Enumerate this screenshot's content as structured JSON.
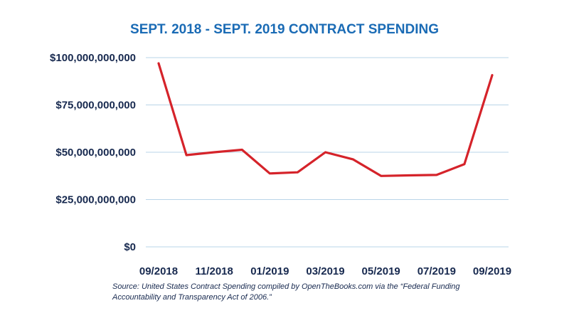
{
  "chart_data": {
    "type": "line",
    "title": "SEPT. 2018 - SEPT. 2019 CONTRACT SPENDING",
    "xlabel": "",
    "ylabel": "",
    "x": [
      "09/2018",
      "10/2018",
      "11/2018",
      "12/2018",
      "01/2019",
      "02/2019",
      "03/2019",
      "04/2019",
      "05/2019",
      "06/2019",
      "07/2019",
      "08/2019",
      "09/2019"
    ],
    "x_tick_labels": [
      "09/2018",
      "11/2018",
      "01/2019",
      "03/2019",
      "05/2019",
      "07/2019",
      "09/2019"
    ],
    "y_tick_labels": [
      "$100,000,000,000",
      "$75,000,000,000",
      "$50,000,000,000",
      "$25,000,000,000",
      "$0"
    ],
    "y_ticks": [
      100000000000,
      75000000000,
      50000000000,
      25000000000,
      0
    ],
    "ylim": [
      0,
      100000000000
    ],
    "grid": true,
    "legend": "none",
    "series": [
      {
        "values": [
          97000000000,
          48500000000,
          50000000000,
          51300000000,
          38800000000,
          39400000000,
          50000000000,
          46200000000,
          37500000000,
          37800000000,
          38000000000,
          43700000000,
          90700000000
        ]
      }
    ],
    "line_color": "#d5232a",
    "title_color": "#1a6bb5",
    "text_color": "#17294f",
    "grid_color": "#b9d5e8"
  },
  "source": {
    "line1": "Source: United States Contract Spending compiled by OpenTheBooks.com via the “Federal Funding",
    "line2": "Accountability and Transparency Act of 2006.”"
  }
}
